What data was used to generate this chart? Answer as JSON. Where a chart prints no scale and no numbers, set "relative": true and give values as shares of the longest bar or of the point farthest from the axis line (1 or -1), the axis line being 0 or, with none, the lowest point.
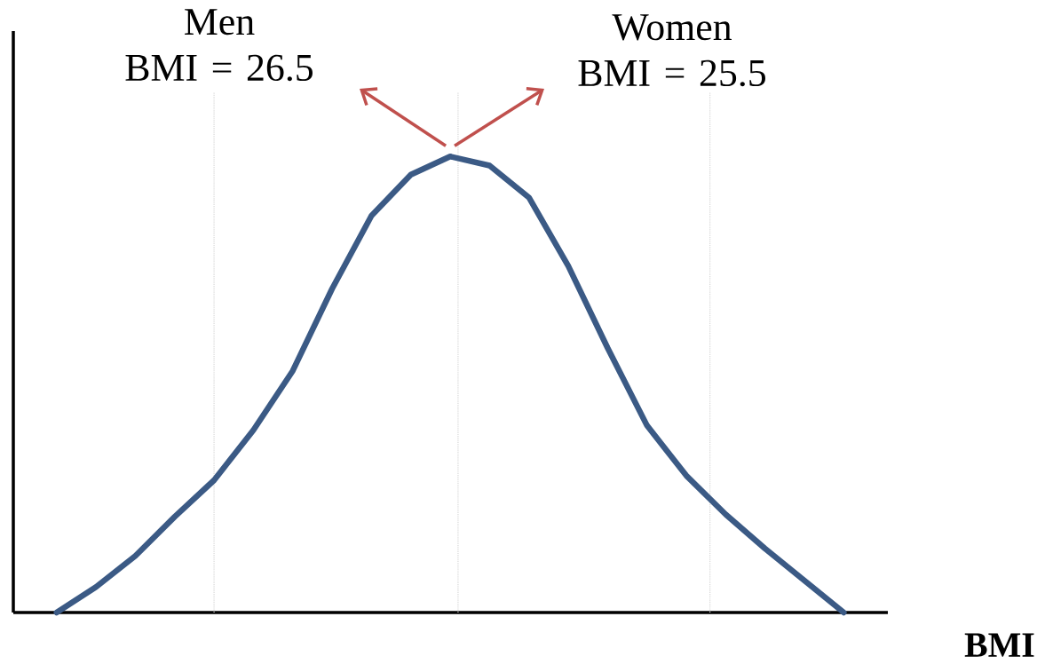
{
  "chart_data": {
    "type": "line",
    "relative": true,
    "xlabel": "BMI",
    "categories": [
      null,
      null,
      null,
      null,
      null,
      null,
      null,
      null,
      null,
      null,
      null,
      null,
      null,
      null,
      null,
      null,
      null,
      null,
      null,
      null,
      null
    ],
    "values": [
      0,
      0.056,
      0.124,
      0.21,
      0.29,
      0.4,
      0.53,
      0.71,
      0.87,
      0.96,
      1,
      0.98,
      0.91,
      0.76,
      0.58,
      0.41,
      0.3,
      0.215,
      0.14,
      0.07,
      0
    ],
    "color": "#3b5a85",
    "annotations": [
      "Men BMI = 26.5",
      "Women BMI = 25.5"
    ]
  }
}
